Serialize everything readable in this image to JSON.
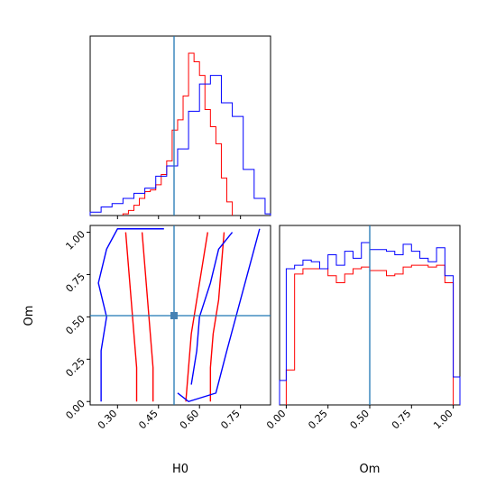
{
  "chart_data": {
    "type": "corner",
    "parameters": [
      "H0",
      "Om"
    ],
    "truths": {
      "H0": 0.5,
      "Om": 0.51
    },
    "colors": {
      "series_a": "#ff0000",
      "series_b": "#0000ff",
      "truth": "#1f77b4"
    },
    "xlabels": {
      "H0": "H0",
      "Om": "Om"
    },
    "ylabels": {
      "Om": "Om"
    },
    "panels": [
      {
        "id": "H0-marginal",
        "type": "histogram",
        "param": "H0",
        "xlim": [
          0.2,
          0.86
        ],
        "series": [
          {
            "color": "red",
            "bin_edges": [
              0.32,
              0.34,
              0.36,
              0.38,
              0.4,
              0.42,
              0.44,
              0.46,
              0.48,
              0.5,
              0.52,
              0.54,
              0.56,
              0.58,
              0.6,
              0.62,
              0.64,
              0.66,
              0.68,
              0.7,
              0.72
            ],
            "counts": [
              1,
              3,
              6,
              10,
              14,
              15,
              18,
              24,
              32,
              50,
              56,
              70,
              95,
              90,
              82,
              62,
              52,
              42,
              22,
              8
            ]
          },
          {
            "color": "blue",
            "bin_edges": [
              0.2,
              0.24,
              0.28,
              0.32,
              0.36,
              0.4,
              0.44,
              0.48,
              0.52,
              0.56,
              0.6,
              0.64,
              0.68,
              0.72,
              0.76,
              0.8,
              0.84,
              0.86
            ],
            "counts": [
              2,
              5,
              7,
              10,
              13,
              16,
              23,
              29,
              39,
              61,
              77,
              82,
              66,
              58,
              27,
              10,
              1
            ]
          }
        ]
      },
      {
        "id": "H0-Om-contour",
        "type": "contour",
        "xlim": [
          0.2,
          0.86
        ],
        "ylim": [
          -0.02,
          1.04
        ],
        "xticks": [
          "0.30",
          "0.45",
          "0.60",
          "0.75"
        ],
        "yticks": [
          "0.00",
          "0.25",
          "0.50",
          "0.75",
          "1.00"
        ],
        "xlabel": "H0",
        "ylabel": "Om",
        "series": [
          {
            "color": "red",
            "contours": [
              [
                [
                  0.37,
                  0.0
                ],
                [
                  0.37,
                  0.2
                ],
                [
                  0.36,
                  0.4
                ],
                [
                  0.35,
                  0.6
                ],
                [
                  0.34,
                  0.8
                ],
                [
                  0.33,
                  1.0
                ]
              ],
              [
                [
                  0.43,
                  0.0
                ],
                [
                  0.43,
                  0.2
                ],
                [
                  0.42,
                  0.4
                ],
                [
                  0.41,
                  0.6
                ],
                [
                  0.4,
                  0.8
                ],
                [
                  0.39,
                  1.0
                ]
              ],
              [
                [
                  0.55,
                  0.0
                ],
                [
                  0.56,
                  0.2
                ],
                [
                  0.57,
                  0.4
                ],
                [
                  0.59,
                  0.6
                ],
                [
                  0.61,
                  0.8
                ],
                [
                  0.63,
                  1.0
                ]
              ],
              [
                [
                  0.64,
                  0.0
                ],
                [
                  0.64,
                  0.2
                ],
                [
                  0.65,
                  0.4
                ],
                [
                  0.67,
                  0.6
                ],
                [
                  0.68,
                  0.8
                ],
                [
                  0.69,
                  1.0
                ]
              ]
            ]
          },
          {
            "color": "blue",
            "contours": [
              [
                [
                  0.24,
                  0.0
                ],
                [
                  0.24,
                  0.3
                ],
                [
                  0.26,
                  0.5
                ],
                [
                  0.23,
                  0.7
                ],
                [
                  0.26,
                  0.9
                ],
                [
                  0.3,
                  1.02
                ],
                [
                  0.47,
                  1.02
                ]
              ],
              [
                [
                  0.52,
                  0.05
                ],
                [
                  0.56,
                  0.0
                ],
                [
                  0.66,
                  0.05
                ],
                [
                  0.7,
                  0.3
                ],
                [
                  0.75,
                  0.6
                ],
                [
                  0.8,
                  0.9
                ],
                [
                  0.82,
                  1.02
                ]
              ],
              [
                [
                  0.57,
                  0.1
                ],
                [
                  0.59,
                  0.3
                ],
                [
                  0.6,
                  0.5
                ],
                [
                  0.64,
                  0.7
                ],
                [
                  0.67,
                  0.9
                ],
                [
                  0.72,
                  1.0
                ]
              ]
            ]
          }
        ]
      },
      {
        "id": "Om-marginal",
        "type": "histogram",
        "param": "Om",
        "xlim": [
          -0.04,
          1.04
        ],
        "xticks": [
          "0.00",
          "0.25",
          "0.50",
          "0.75",
          "1.00"
        ],
        "xlabel": "Om",
        "series": [
          {
            "color": "red",
            "bin_edges": [
              0.0,
              0.05,
              0.1,
              0.15,
              0.2,
              0.25,
              0.3,
              0.35,
              0.4,
              0.45,
              0.5,
              0.55,
              0.6,
              0.65,
              0.7,
              0.75,
              0.8,
              0.85,
              0.9,
              0.95,
              1.0
            ],
            "counts": [
              20,
              75,
              78,
              78,
              78,
              74,
              70,
              75,
              78,
              79,
              77,
              77,
              74,
              75,
              79,
              80,
              80,
              79,
              80,
              70
            ]
          },
          {
            "color": "blue",
            "bin_edges": [
              -0.04,
              0.0,
              0.05,
              0.1,
              0.15,
              0.2,
              0.25,
              0.3,
              0.35,
              0.4,
              0.45,
              0.5,
              0.55,
              0.6,
              0.65,
              0.7,
              0.75,
              0.8,
              0.85,
              0.9,
              0.95,
              1.0,
              1.04
            ],
            "counts": [
              14,
              78,
              80,
              83,
              82,
              78,
              86,
              80,
              88,
              84,
              93,
              89,
              89,
              88,
              86,
              92,
              88,
              84,
              82,
              90,
              74,
              16
            ]
          }
        ]
      }
    ]
  }
}
